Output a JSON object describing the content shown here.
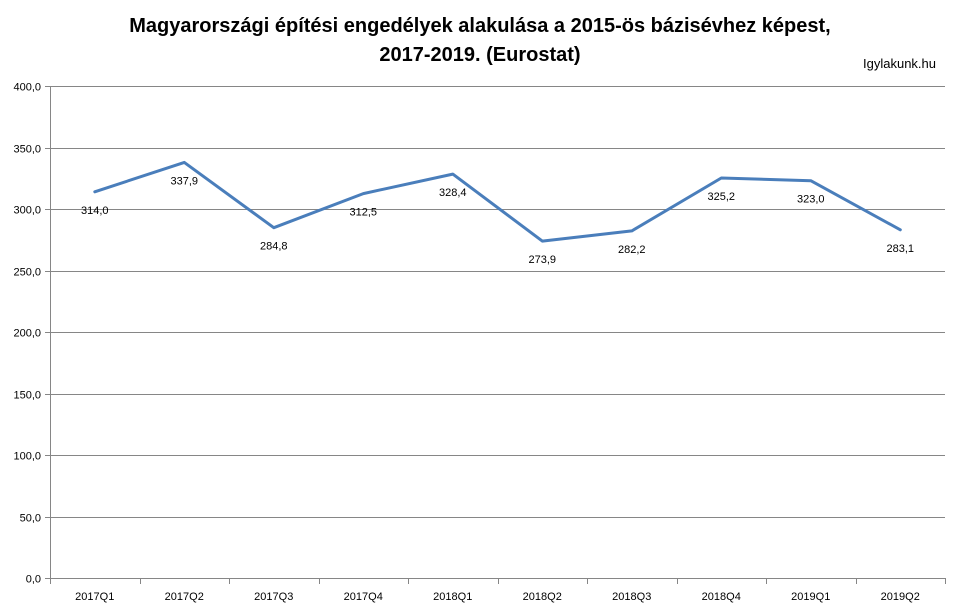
{
  "chart_data": {
    "type": "line",
    "title_lines": [
      "Magyarországi építési engedélyek alakulása a 2015-ös bázisévhez képest,",
      "2017-2019.  (Eurostat)"
    ],
    "source_note": "Igylakunk.hu",
    "categories": [
      "2017Q1",
      "2017Q2",
      "2017Q3",
      "2017Q4",
      "2018Q1",
      "2018Q2",
      "2018Q3",
      "2018Q4",
      "2019Q1",
      "2019Q2"
    ],
    "series": [
      {
        "values": [
          314.0,
          337.9,
          284.8,
          312.5,
          328.4,
          273.9,
          282.2,
          325.2,
          323.0,
          283.1
        ],
        "labels": [
          "314,0",
          "337,9",
          "284,8",
          "312,5",
          "328,4",
          "273,9",
          "282,2",
          "325,2",
          "323,0",
          "283,1"
        ],
        "color": "#4a7ebb"
      }
    ],
    "ylim": [
      0,
      400
    ],
    "yticks": [
      "0,0",
      "50,0",
      "100,0",
      "150,0",
      "200,0",
      "250,0",
      "300,0",
      "350,0",
      "400,0"
    ],
    "xlabel": "",
    "ylabel": "",
    "grid": true,
    "legend": "none"
  }
}
